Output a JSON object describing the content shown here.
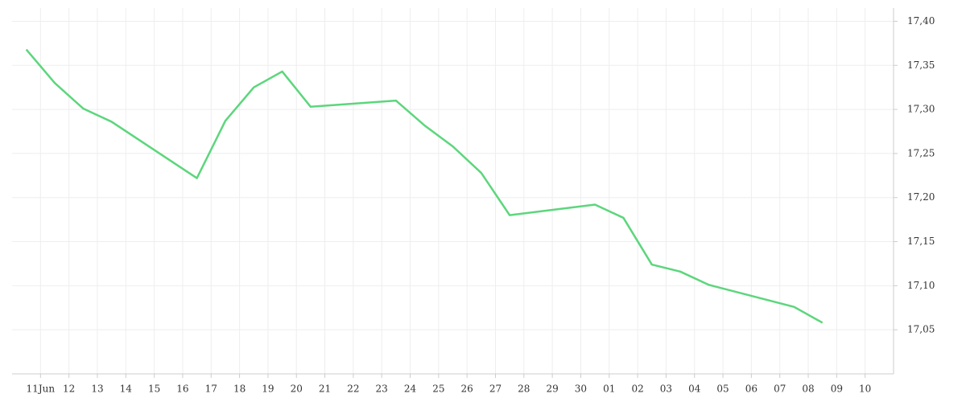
{
  "chart_data": {
    "type": "line",
    "x": [
      -0.5,
      0.5,
      1.5,
      2.5,
      5.5,
      6.5,
      7.5,
      8.5,
      9.5,
      12.5,
      13.5,
      14.5,
      15.5,
      16.5,
      19.5,
      20.5,
      21.5,
      22.5,
      23.5,
      26.5,
      27.5
    ],
    "series": [
      {
        "color": "#5cd67c",
        "values": [
          17.368,
          17.33,
          17.301,
          17.286,
          17.222,
          17.287,
          17.325,
          17.343,
          17.303,
          17.31,
          17.282,
          17.258,
          17.228,
          17.18,
          17.192,
          17.177,
          17.124,
          17.116,
          17.101,
          17.076,
          17.058
        ]
      }
    ],
    "xlim": [
      -1,
      30
    ],
    "xticks": [
      {
        "value": 0,
        "label": "11Jun"
      },
      {
        "value": 1,
        "label": "12"
      },
      {
        "value": 2,
        "label": "13"
      },
      {
        "value": 3,
        "label": "14"
      },
      {
        "value": 4,
        "label": "15"
      },
      {
        "value": 5,
        "label": "16"
      },
      {
        "value": 6,
        "label": "17"
      },
      {
        "value": 7,
        "label": "18"
      },
      {
        "value": 8,
        "label": "19"
      },
      {
        "value": 9,
        "label": "20"
      },
      {
        "value": 10,
        "label": "21"
      },
      {
        "value": 11,
        "label": "22"
      },
      {
        "value": 12,
        "label": "23"
      },
      {
        "value": 13,
        "label": "24"
      },
      {
        "value": 14,
        "label": "25"
      },
      {
        "value": 15,
        "label": "26"
      },
      {
        "value": 16,
        "label": "27"
      },
      {
        "value": 17,
        "label": "28"
      },
      {
        "value": 18,
        "label": "29"
      },
      {
        "value": 19,
        "label": "30"
      },
      {
        "value": 20,
        "label": "01"
      },
      {
        "value": 21,
        "label": "02"
      },
      {
        "value": 22,
        "label": "03"
      },
      {
        "value": 23,
        "label": "04"
      },
      {
        "value": 24,
        "label": "05"
      },
      {
        "value": 25,
        "label": "06"
      },
      {
        "value": 26,
        "label": "07"
      },
      {
        "value": 27,
        "label": "08"
      },
      {
        "value": 28,
        "label": "09"
      },
      {
        "value": 29,
        "label": "10"
      }
    ],
    "ylim": [
      17.0,
      17.415
    ],
    "yticks": [
      {
        "value": 17.05,
        "label": "17,05"
      },
      {
        "value": 17.1,
        "label": "17,10"
      },
      {
        "value": 17.15,
        "label": "17,15"
      },
      {
        "value": 17.2,
        "label": "17,20"
      },
      {
        "value": 17.25,
        "label": "17,25"
      },
      {
        "value": 17.3,
        "label": "17,30"
      },
      {
        "value": 17.35,
        "label": "17,35"
      },
      {
        "value": 17.4,
        "label": "17,40"
      }
    ],
    "grid": true
  }
}
